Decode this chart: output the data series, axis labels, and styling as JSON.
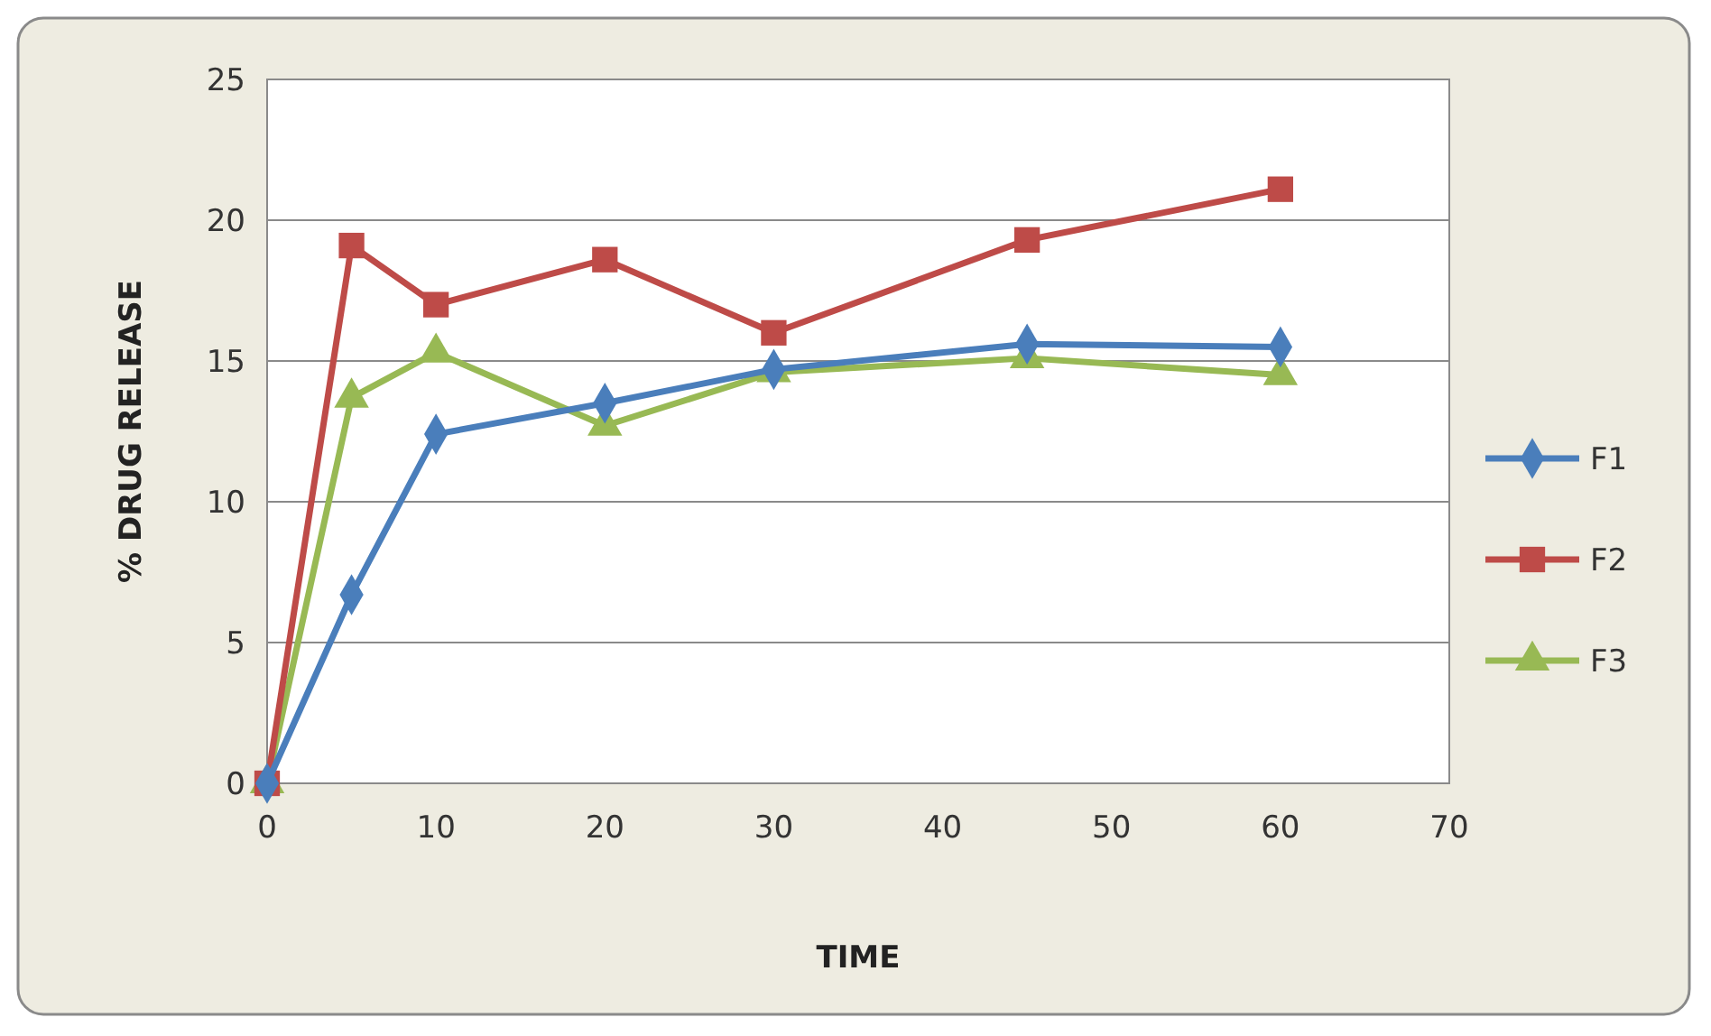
{
  "chart_data": {
    "type": "line",
    "xlabel": "TIME",
    "ylabel": "% DRUG RELEASE",
    "x": [
      0,
      5,
      10,
      20,
      30,
      45,
      60
    ],
    "series": [
      {
        "name": "F1",
        "color": "#4a7ebb",
        "marker": "diamond",
        "values": [
          0,
          6.7,
          12.4,
          13.5,
          14.7,
          15.6,
          15.5
        ]
      },
      {
        "name": "F2",
        "color": "#be4b48",
        "marker": "square",
        "values": [
          0,
          19.1,
          17.0,
          18.6,
          16.0,
          19.3,
          21.1
        ]
      },
      {
        "name": "F3",
        "color": "#98b954",
        "marker": "triangle",
        "values": [
          0,
          13.7,
          15.3,
          12.7,
          14.6,
          15.1,
          14.5
        ]
      }
    ],
    "xlim": [
      0,
      70
    ],
    "xticks": [
      0,
      10,
      20,
      30,
      40,
      50,
      60,
      70
    ],
    "ylim": [
      0,
      25
    ],
    "yticks": [
      0,
      5,
      10,
      15,
      20,
      25
    ],
    "grid": "y",
    "legend": "right",
    "line_style": "solid"
  }
}
